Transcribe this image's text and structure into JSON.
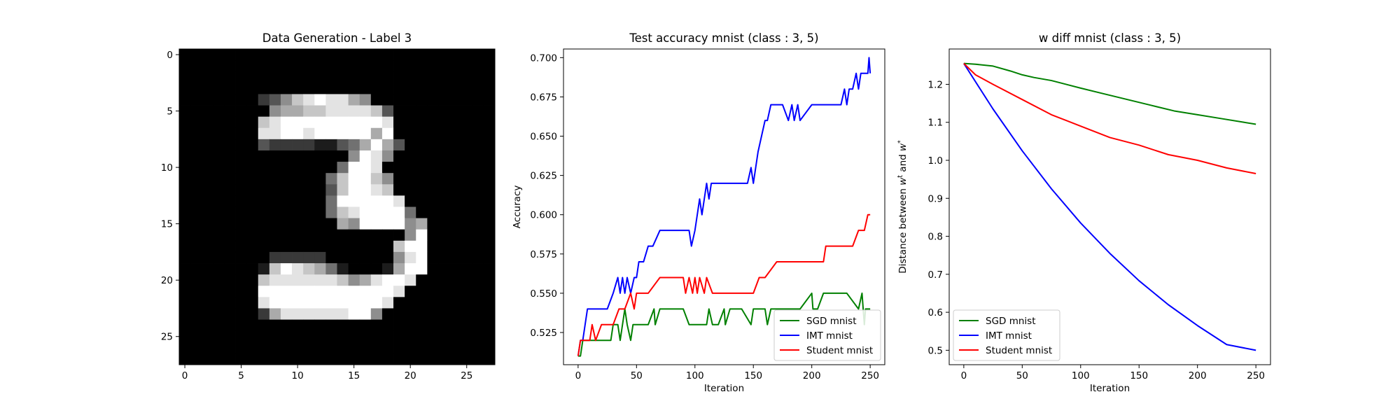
{
  "chart_data": [
    {
      "type": "heatmap",
      "title": "Data Generation - Label 3",
      "xlabel": "",
      "ylabel": "",
      "xlim": [
        -0.5,
        27.5
      ],
      "ylim": [
        27.5,
        -0.5
      ],
      "xticks": [
        0,
        5,
        10,
        15,
        20,
        25
      ],
      "yticks": [
        0,
        5,
        10,
        15,
        20,
        25
      ],
      "colormap": "gray",
      "grid": false,
      "rows": [
        "0000000000000000000000000000",
        "0000000000000000000000000000",
        "0000000000000000000000000000",
        "0000000000000000000000000000",
        "0000000235789886500000000000",
        "0000000056677888873000000000",
        "0000000789999999998000000000",
        "0000000889989999969000000000",
        "0000000322221134696300000000",
        "0000000000000005985000000000",
        "0000000000000049980000000000",
        "0000000000000479975000000000",
        "0000000000000379987000000000",
        "0000000000000499999800000000",
        "0000000000000478999940000000",
        "0000000000000065999956000000",
        "0000000000000000000059000000",
        "0000000000000000000799000000",
        "0000000022222000000589000000",
        "0000000179876410001699000000",
        "0000000788888875689980000000",
        "0000000999999999999800000000",
        "0000000899999999998000000000",
        "0000000268888889950000000000",
        "0000000000000000000000000000",
        "0000000000000000000000000000",
        "0000000000000000000000000000",
        "0000000000000000000000000000"
      ]
    },
    {
      "type": "line",
      "title": "Test accuracy mnist (class : 3, 5)",
      "xlabel": "Iteration",
      "ylabel": "Accuracy",
      "xlim": [
        -12.5,
        262.5
      ],
      "ylim": [
        0.5045,
        0.7055
      ],
      "xticks": [
        0,
        50,
        100,
        150,
        200,
        250
      ],
      "yticks": [
        0.525,
        0.55,
        0.575,
        0.6,
        0.625,
        0.65,
        0.675,
        0.7
      ],
      "ytick_labels": [
        "0.525",
        "0.550",
        "0.575",
        "0.600",
        "0.625",
        "0.650",
        "0.675",
        "0.700"
      ],
      "legend": "lower-right",
      "grid": false,
      "series": [
        {
          "name": "SGD mnist",
          "color": "#008000",
          "x": [
            0,
            2,
            4,
            6,
            10,
            20,
            28,
            30,
            34,
            36,
            40,
            42,
            45,
            47,
            50,
            60,
            65,
            66,
            70,
            72,
            80,
            90,
            95,
            96,
            100,
            110,
            112,
            115,
            120,
            125,
            126,
            130,
            140,
            148,
            150,
            160,
            162,
            165,
            170,
            190,
            200,
            201,
            205,
            210,
            212,
            230,
            240,
            243,
            245,
            246,
            248,
            250
          ],
          "y": [
            0.51,
            0.51,
            0.52,
            0.52,
            0.52,
            0.52,
            0.52,
            0.53,
            0.53,
            0.52,
            0.54,
            0.53,
            0.52,
            0.53,
            0.53,
            0.53,
            0.54,
            0.53,
            0.54,
            0.54,
            0.54,
            0.54,
            0.53,
            0.53,
            0.53,
            0.53,
            0.54,
            0.53,
            0.53,
            0.54,
            0.53,
            0.54,
            0.54,
            0.53,
            0.54,
            0.54,
            0.53,
            0.54,
            0.54,
            0.54,
            0.55,
            0.54,
            0.54,
            0.55,
            0.55,
            0.55,
            0.54,
            0.55,
            0.53,
            0.54,
            0.54,
            0.54
          ]
        },
        {
          "name": "IMT mnist",
          "color": "#0000ff",
          "x": [
            0,
            2,
            4,
            6,
            8,
            10,
            25,
            30,
            34,
            36,
            38,
            40,
            42,
            45,
            48,
            50,
            52,
            56,
            60,
            64,
            70,
            75,
            95,
            97,
            100,
            102,
            104,
            106,
            110,
            112,
            114,
            120,
            130,
            140,
            145,
            148,
            150,
            152,
            154,
            157,
            160,
            162,
            165,
            170,
            175,
            180,
            183,
            185,
            188,
            190,
            200,
            210,
            215,
            220,
            225,
            228,
            230,
            232,
            235,
            238,
            240,
            242,
            245,
            248,
            249,
            250
          ],
          "y": [
            0.51,
            0.52,
            0.52,
            0.53,
            0.54,
            0.54,
            0.54,
            0.55,
            0.56,
            0.55,
            0.56,
            0.55,
            0.56,
            0.55,
            0.56,
            0.56,
            0.57,
            0.57,
            0.58,
            0.58,
            0.59,
            0.59,
            0.59,
            0.58,
            0.59,
            0.6,
            0.61,
            0.6,
            0.62,
            0.61,
            0.62,
            0.62,
            0.62,
            0.62,
            0.62,
            0.63,
            0.62,
            0.63,
            0.64,
            0.65,
            0.66,
            0.66,
            0.67,
            0.67,
            0.67,
            0.66,
            0.67,
            0.66,
            0.67,
            0.66,
            0.67,
            0.67,
            0.67,
            0.67,
            0.67,
            0.68,
            0.67,
            0.68,
            0.68,
            0.69,
            0.68,
            0.69,
            0.69,
            0.69,
            0.7,
            0.69
          ]
        },
        {
          "name": "Student mnist",
          "color": "#ff0000",
          "x": [
            0,
            2,
            5,
            10,
            12,
            15,
            20,
            30,
            35,
            40,
            45,
            48,
            50,
            55,
            60,
            70,
            90,
            92,
            95,
            98,
            100,
            102,
            104,
            108,
            110,
            115,
            120,
            130,
            140,
            150,
            155,
            160,
            170,
            180,
            200,
            210,
            212,
            220,
            235,
            240,
            245,
            248,
            250
          ],
          "y": [
            0.51,
            0.52,
            0.52,
            0.52,
            0.53,
            0.52,
            0.53,
            0.53,
            0.54,
            0.54,
            0.55,
            0.54,
            0.55,
            0.55,
            0.55,
            0.56,
            0.56,
            0.55,
            0.56,
            0.55,
            0.56,
            0.55,
            0.56,
            0.55,
            0.56,
            0.55,
            0.55,
            0.55,
            0.55,
            0.55,
            0.56,
            0.56,
            0.57,
            0.57,
            0.57,
            0.57,
            0.58,
            0.58,
            0.58,
            0.59,
            0.59,
            0.6,
            0.6
          ]
        }
      ]
    },
    {
      "type": "line",
      "title": "w diff mnist (class : 3, 5)",
      "xlabel": "Iteration",
      "ylabel": "Distance between w^t and w^*",
      "xlim": [
        -12.5,
        262.5
      ],
      "ylim": [
        0.462,
        1.293
      ],
      "xticks": [
        0,
        50,
        100,
        150,
        200,
        250
      ],
      "yticks": [
        0.5,
        0.6,
        0.7,
        0.8,
        0.9,
        1.0,
        1.1,
        1.2
      ],
      "ytick_labels": [
        "0.5",
        "0.6",
        "0.7",
        "0.8",
        "0.9",
        "1.0",
        "1.1",
        "1.2"
      ],
      "legend": "lower-left",
      "grid": false,
      "series": [
        {
          "name": "SGD mnist",
          "color": "#008000",
          "x": [
            0,
            10,
            25,
            40,
            50,
            60,
            75,
            100,
            120,
            140,
            160,
            180,
            200,
            220,
            240,
            250
          ],
          "y": [
            1.255,
            1.253,
            1.248,
            1.235,
            1.225,
            1.218,
            1.21,
            1.19,
            1.175,
            1.16,
            1.145,
            1.13,
            1.12,
            1.11,
            1.1,
            1.095
          ]
        },
        {
          "name": "IMT mnist",
          "color": "#0000ff",
          "x": [
            0,
            25,
            50,
            75,
            100,
            125,
            150,
            175,
            200,
            225,
            250
          ],
          "y": [
            1.255,
            1.135,
            1.025,
            0.925,
            0.835,
            0.755,
            0.683,
            0.62,
            0.565,
            0.515,
            0.5
          ]
        },
        {
          "name": "Student mnist",
          "color": "#ff0000",
          "x": [
            0,
            10,
            25,
            50,
            75,
            100,
            125,
            150,
            175,
            200,
            225,
            250
          ],
          "y": [
            1.255,
            1.225,
            1.2,
            1.16,
            1.12,
            1.09,
            1.06,
            1.04,
            1.015,
            1.0,
            0.98,
            0.965
          ]
        }
      ]
    }
  ]
}
